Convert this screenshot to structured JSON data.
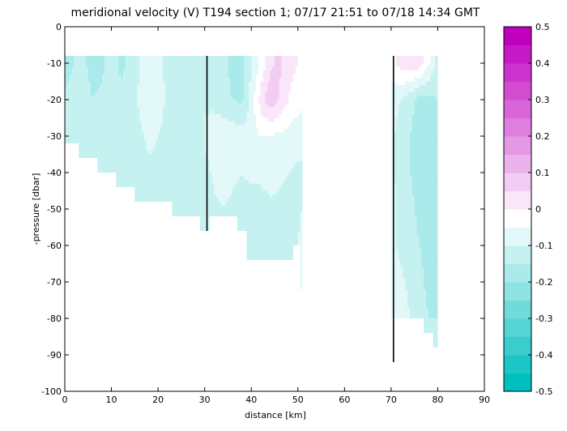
{
  "chart_data": {
    "type": "heatmap",
    "subtype": "filled-contour section plot",
    "title": "meridional velocity (V) T194 section 1; 07/17 21:51 to 07/18 14:34 GMT",
    "xlabel": "distance [km]",
    "ylabel": "-pressure [dbar]",
    "xlim": [
      0,
      90
    ],
    "ylim": [
      -100,
      0
    ],
    "xticks": [
      "0",
      "10",
      "20",
      "30",
      "40",
      "50",
      "60",
      "70",
      "80",
      "90"
    ],
    "yticks": [
      "0",
      "-10",
      "-20",
      "-30",
      "-40",
      "-50",
      "-60",
      "-70",
      "-80",
      "-90",
      "-100"
    ],
    "grid": false,
    "colorbar": {
      "range": [
        -0.5,
        0.5
      ],
      "ticks": [
        "0.5",
        "0.4",
        "0.3",
        "0.2",
        "0.1",
        "0",
        "-0.1",
        "-0.2",
        "-0.3",
        "-0.4",
        "-0.5"
      ],
      "level_step": 0.05,
      "low_color": "#00bfbf",
      "zero_color": "#ffffff",
      "high_color": "#bf00bf"
    },
    "regions": [
      {
        "x": [
          0,
          2,
          4,
          6,
          8,
          10,
          12,
          14,
          16,
          18,
          20,
          22,
          24,
          26,
          28,
          30
        ],
        "depth_floor": [
          -32,
          -32,
          -36,
          -36,
          -40,
          -40,
          -44,
          -44,
          -48,
          -48,
          -48,
          -48,
          -52,
          -52,
          -52,
          -56
        ],
        "values": [
          {
            "p": -10,
            "v": [
              -0.18,
              -0.15,
              -0.14,
              -0.17,
              -0.16,
              -0.13,
              -0.16,
              -0.14,
              -0.1,
              -0.06,
              -0.07,
              -0.12,
              -0.15,
              -0.14,
              -0.12,
              -0.13
            ]
          },
          {
            "p": -20,
            "v": [
              -0.14,
              -0.11,
              -0.13,
              -0.15,
              -0.14,
              -0.1,
              -0.14,
              -0.14,
              -0.09,
              -0.07,
              -0.08,
              -0.11,
              -0.13,
              -0.14,
              -0.13,
              -0.14
            ]
          },
          {
            "p": -30,
            "v": [
              -0.15,
              -0.14,
              -0.15,
              -0.15,
              -0.14,
              -0.12,
              -0.13,
              -0.13,
              -0.11,
              -0.09,
              -0.1,
              -0.11,
              -0.12,
              -0.13,
              -0.13,
              -0.14
            ]
          },
          {
            "p": -40,
            "v": [
              -0.15,
              -0.15,
              -0.15,
              -0.15,
              -0.15,
              -0.14,
              -0.15,
              -0.15,
              -0.13,
              -0.11,
              -0.11,
              -0.12,
              -0.13,
              -0.13,
              -0.13,
              -0.14
            ]
          },
          {
            "p": -50,
            "v": [
              -0.15,
              -0.15,
              -0.15,
              -0.15,
              -0.15,
              -0.15,
              -0.15,
              -0.15,
              -0.14,
              -0.13,
              -0.12,
              -0.13,
              -0.14,
              -0.14,
              -0.14,
              -0.14
            ]
          },
          {
            "p": -56,
            "v": [
              -0.15,
              -0.15,
              -0.15,
              -0.15,
              -0.15,
              -0.15,
              -0.15,
              -0.15,
              -0.14,
              -0.13,
              -0.13,
              -0.13,
              -0.14,
              -0.14,
              -0.14,
              -0.14
            ]
          }
        ]
      },
      {
        "x": [
          30,
          32,
          34,
          36,
          38,
          40,
          42,
          44,
          46,
          48,
          50,
          51
        ],
        "depth_floor": [
          -56,
          -52,
          -52,
          -52,
          -56,
          -64,
          -64,
          -64,
          -64,
          -64,
          -60,
          -72
        ],
        "values": [
          {
            "p": -10,
            "v": [
              -0.1,
              -0.12,
              -0.14,
              -0.16,
              -0.18,
              -0.1,
              -0.04,
              0.04,
              0.06,
              0.02,
              0.0,
              -0.03
            ]
          },
          {
            "p": -20,
            "v": [
              -0.11,
              -0.12,
              -0.14,
              -0.15,
              -0.16,
              -0.08,
              0.02,
              0.08,
              0.05,
              0.0,
              -0.03,
              -0.04
            ]
          },
          {
            "p": -30,
            "v": [
              -0.09,
              -0.06,
              -0.06,
              -0.07,
              -0.08,
              -0.07,
              -0.05,
              -0.05,
              -0.06,
              -0.07,
              -0.08,
              -0.08
            ]
          },
          {
            "p": -40,
            "v": [
              -0.12,
              -0.09,
              -0.08,
              -0.09,
              -0.1,
              -0.09,
              -0.09,
              -0.08,
              -0.09,
              -0.1,
              -0.11,
              -0.11
            ]
          },
          {
            "p": -50,
            "v": [
              -0.13,
              -0.11,
              -0.1,
              -0.11,
              -0.12,
              -0.12,
              -0.12,
              -0.11,
              -0.11,
              -0.12,
              -0.12,
              -0.1
            ]
          },
          {
            "p": -60,
            "v": [
              -0.13,
              -0.12,
              -0.11,
              -0.12,
              -0.12,
              -0.13,
              -0.13,
              -0.12,
              -0.12,
              -0.12,
              -0.1,
              -0.06
            ]
          },
          {
            "p": -72,
            "v": [
              -0.13,
              -0.12,
              -0.11,
              -0.12,
              -0.12,
              -0.13,
              -0.13,
              -0.12,
              -0.12,
              -0.12,
              -0.1,
              -0.04
            ]
          }
        ]
      },
      {
        "x": [
          70,
          72,
          74,
          76,
          78,
          80
        ],
        "depth_floor": [
          -80,
          -80,
          -80,
          -80,
          -84,
          -88
        ],
        "values": [
          {
            "p": -10,
            "v": [
              -0.02,
              0.02,
              0.04,
              0.03,
              -0.04,
              -0.12
            ]
          },
          {
            "p": -20,
            "v": [
              -0.08,
              -0.1,
              -0.13,
              -0.17,
              -0.16,
              -0.15
            ]
          },
          {
            "p": -30,
            "v": [
              -0.09,
              -0.12,
              -0.15,
              -0.17,
              -0.16,
              -0.15
            ]
          },
          {
            "p": -40,
            "v": [
              -0.09,
              -0.12,
              -0.15,
              -0.16,
              -0.16,
              -0.15
            ]
          },
          {
            "p": -50,
            "v": [
              -0.09,
              -0.11,
              -0.14,
              -0.16,
              -0.16,
              -0.15
            ]
          },
          {
            "p": -60,
            "v": [
              -0.09,
              -0.11,
              -0.13,
              -0.15,
              -0.16,
              -0.15
            ]
          },
          {
            "p": -70,
            "v": [
              -0.07,
              -0.09,
              -0.11,
              -0.14,
              -0.16,
              -0.15
            ]
          },
          {
            "p": -80,
            "v": [
              -0.06,
              -0.08,
              -0.1,
              -0.12,
              -0.15,
              -0.15
            ]
          },
          {
            "p": -88,
            "v": [
              -0.06,
              -0.08,
              -0.1,
              -0.12,
              -0.15,
              -0.15
            ]
          }
        ]
      }
    ],
    "station_lines": [
      {
        "x": 30.5,
        "from": -8,
        "to": -56
      },
      {
        "x": 70.5,
        "from": -8,
        "to": -92
      }
    ]
  }
}
